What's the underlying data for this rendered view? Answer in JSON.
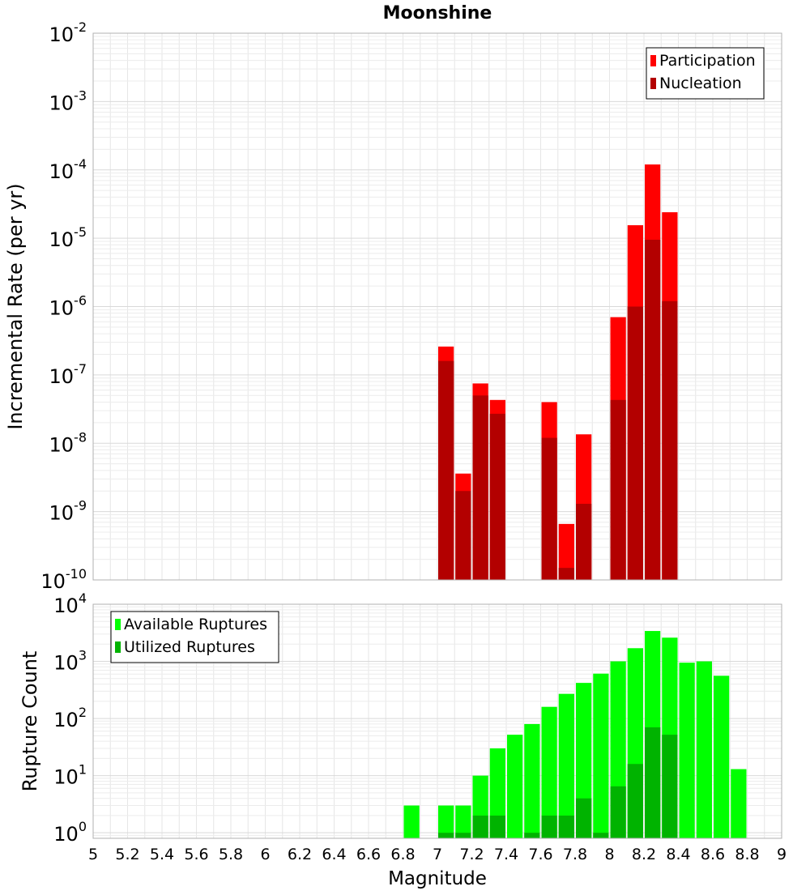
{
  "chart_data": [
    {
      "type": "bar",
      "title": "Moonshine",
      "xlabel": "",
      "ylabel": "Incremental Rate (per yr)",
      "y_scale": "log",
      "ylim": [
        1e-10,
        0.01
      ],
      "y_ticks": [
        {
          "base": "10",
          "exp": "-10",
          "value": 1e-10
        },
        {
          "base": "10",
          "exp": "-9",
          "value": 1e-09
        },
        {
          "base": "10",
          "exp": "-8",
          "value": 1e-08
        },
        {
          "base": "10",
          "exp": "-7",
          "value": 1e-07
        },
        {
          "base": "10",
          "exp": "-6",
          "value": 1e-06
        },
        {
          "base": "10",
          "exp": "-5",
          "value": 1e-05
        },
        {
          "base": "10",
          "exp": "-4",
          "value": 0.0001
        },
        {
          "base": "10",
          "exp": "-3",
          "value": 0.001
        },
        {
          "base": "10",
          "exp": "-2",
          "value": 0.01
        }
      ],
      "xlim": [
        5,
        9
      ],
      "bin_width": 0.1,
      "grid": true,
      "legend_position": "top-right",
      "series": [
        {
          "name": "Participation",
          "color": "#ff0000",
          "x": [
            7.05,
            7.15,
            7.25,
            7.35,
            7.65,
            7.75,
            7.85,
            8.05,
            8.15,
            8.25,
            8.35
          ],
          "values": [
            2.6e-07,
            3.6e-09,
            7.5e-08,
            4.3e-08,
            4e-08,
            6.6e-10,
            1.35e-08,
            7e-07,
            1.55e-05,
            0.00012,
            2.4e-05
          ]
        },
        {
          "name": "Nucleation",
          "color": "#b30000",
          "x": [
            7.05,
            7.15,
            7.25,
            7.35,
            7.65,
            7.75,
            7.85,
            8.05,
            8.15,
            8.25,
            8.35
          ],
          "values": [
            1.6e-07,
            2e-09,
            5e-08,
            2.7e-08,
            1.2e-08,
            1.5e-10,
            1.3e-09,
            4.3e-08,
            1e-06,
            9.5e-06,
            1.2e-06
          ]
        }
      ]
    },
    {
      "type": "bar",
      "title": "",
      "xlabel": "Magnitude",
      "ylabel": "Rupture Count",
      "y_scale": "log",
      "ylim": [
        0.8,
        10000
      ],
      "y_ticks": [
        {
          "base": "10",
          "exp": "0",
          "value": 1
        },
        {
          "base": "10",
          "exp": "1",
          "value": 10
        },
        {
          "base": "10",
          "exp": "2",
          "value": 100
        },
        {
          "base": "10",
          "exp": "3",
          "value": 1000
        },
        {
          "base": "10",
          "exp": "4",
          "value": 10000
        }
      ],
      "xlim": [
        5,
        9
      ],
      "x_tick_labels": [
        "5",
        "5.2",
        "5.4",
        "5.6",
        "5.8",
        "6",
        "6.2",
        "6.4",
        "6.6",
        "6.8",
        "7",
        "7.2",
        "7.4",
        "7.6",
        "7.8",
        "8",
        "8.2",
        "8.4",
        "8.6",
        "8.8",
        "9"
      ],
      "bin_width": 0.1,
      "grid": true,
      "legend_position": "top-left",
      "series": [
        {
          "name": "Available Ruptures",
          "color": "#00ff00",
          "x": [
            6.85,
            7.05,
            7.15,
            7.25,
            7.35,
            7.45,
            7.55,
            7.65,
            7.75,
            7.85,
            7.95,
            8.05,
            8.15,
            8.25,
            8.35,
            8.45,
            8.55,
            8.65,
            8.75
          ],
          "values": [
            3,
            3,
            3,
            10,
            30,
            52,
            80,
            160,
            270,
            420,
            610,
            1000,
            1700,
            3400,
            2600,
            950,
            1000,
            560,
            13
          ]
        },
        {
          "name": "Utilized Ruptures",
          "color": "#00b300",
          "x": [
            7.05,
            7.15,
            7.25,
            7.35,
            7.55,
            7.65,
            7.75,
            7.85,
            7.95,
            8.05,
            8.15,
            8.25,
            8.35
          ],
          "values": [
            1,
            1,
            2,
            2,
            1,
            2,
            2,
            4,
            1,
            6.5,
            16,
            70,
            52
          ]
        }
      ]
    }
  ]
}
